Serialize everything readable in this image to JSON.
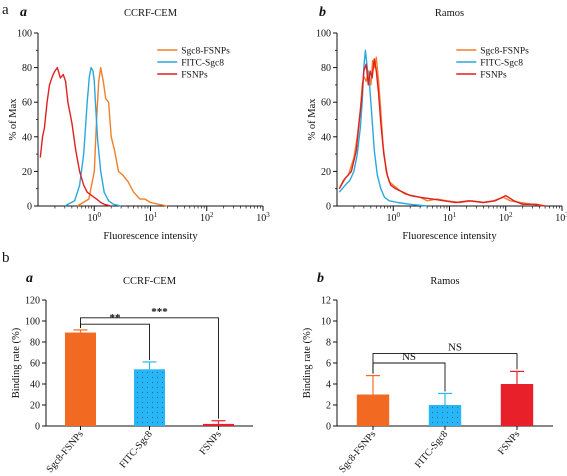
{
  "figure": {
    "row_labels": [
      "a",
      "b"
    ]
  },
  "chart_data": [
    {
      "id": "a-left",
      "type": "line",
      "panel_letter": "a",
      "title": "CCRF-CEM",
      "xlabel": "Fluorescence intensity",
      "ylabel": "% of Max",
      "x_scale": "log",
      "xlim": [
        0.1,
        1000
      ],
      "ylim": [
        0,
        100
      ],
      "x_ticks": [
        {
          "v": 1,
          "base": "10",
          "exp": "0"
        },
        {
          "v": 10,
          "base": "10",
          "exp": "1"
        },
        {
          "v": 100,
          "base": "10",
          "exp": "2"
        },
        {
          "v": 1000,
          "base": "10",
          "exp": "3"
        }
      ],
      "y_ticks": [
        "0",
        "20",
        "40",
        "60",
        "80",
        "100"
      ],
      "legend_position": "top-right",
      "series": [
        {
          "name": "Sgc8-FSNPs",
          "color": "#f07f2a",
          "points": [
            [
              0.5,
              0
            ],
            [
              0.8,
              4
            ],
            [
              1.0,
              20
            ],
            [
              1.1,
              50
            ],
            [
              1.2,
              72
            ],
            [
              1.3,
              80
            ],
            [
              1.45,
              72
            ],
            [
              1.6,
              62
            ],
            [
              1.8,
              60
            ],
            [
              2.0,
              40
            ],
            [
              2.3,
              32
            ],
            [
              2.7,
              20
            ],
            [
              3.2,
              18
            ],
            [
              4.0,
              14
            ],
            [
              5.0,
              8
            ],
            [
              6.5,
              4
            ],
            [
              8,
              4
            ],
            [
              10,
              2
            ],
            [
              14,
              1
            ],
            [
              20,
              0
            ]
          ]
        },
        {
          "name": "FITC-Sgc8",
          "color": "#29a8e0",
          "points": [
            [
              0.3,
              0
            ],
            [
              0.45,
              3
            ],
            [
              0.55,
              12
            ],
            [
              0.65,
              30
            ],
            [
              0.75,
              60
            ],
            [
              0.82,
              75
            ],
            [
              0.88,
              80
            ],
            [
              0.95,
              78
            ],
            [
              1.0,
              72
            ],
            [
              1.05,
              60
            ],
            [
              1.15,
              38
            ],
            [
              1.3,
              20
            ],
            [
              1.5,
              8
            ],
            [
              1.8,
              3
            ],
            [
              2.2,
              1
            ],
            [
              3,
              0
            ]
          ]
        },
        {
          "name": "FSNPs",
          "color": "#e02020",
          "points": [
            [
              0.11,
              28
            ],
            [
              0.12,
              40
            ],
            [
              0.13,
              45
            ],
            [
              0.145,
              60
            ],
            [
              0.16,
              70
            ],
            [
              0.18,
              75
            ],
            [
              0.2,
              78
            ],
            [
              0.22,
              80
            ],
            [
              0.25,
              74
            ],
            [
              0.28,
              76
            ],
            [
              0.31,
              72
            ],
            [
              0.34,
              60
            ],
            [
              0.4,
              48
            ],
            [
              0.47,
              32
            ],
            [
              0.55,
              20
            ],
            [
              0.65,
              12
            ],
            [
              0.75,
              8
            ],
            [
              0.9,
              6
            ],
            [
              1.1,
              4
            ],
            [
              1.3,
              2
            ],
            [
              1.5,
              1
            ],
            [
              2,
              0
            ]
          ]
        }
      ]
    },
    {
      "id": "a-right",
      "type": "line",
      "panel_letter": "b",
      "title": "Ramos",
      "xlabel": "Fluorescence intensity",
      "ylabel": "% of Max",
      "x_scale": "log",
      "xlim": [
        0.1,
        1000
      ],
      "ylim": [
        0,
        100
      ],
      "x_ticks": [
        {
          "v": 1,
          "base": "10",
          "exp": "0"
        },
        {
          "v": 10,
          "base": "10",
          "exp": "1"
        },
        {
          "v": 100,
          "base": "10",
          "exp": "2"
        },
        {
          "v": 1000,
          "base": "10",
          "exp": "3"
        }
      ],
      "y_ticks": [
        "0",
        "20",
        "40",
        "60",
        "80",
        "100"
      ],
      "legend_position": "top-right",
      "series": [
        {
          "name": "Sgc8-FSNPs",
          "color": "#f07f2a",
          "points": [
            [
              0.11,
              10
            ],
            [
              0.13,
              15
            ],
            [
              0.16,
              18
            ],
            [
              0.2,
              28
            ],
            [
              0.23,
              40
            ],
            [
              0.26,
              55
            ],
            [
              0.28,
              70
            ],
            [
              0.3,
              75
            ],
            [
              0.33,
              72
            ],
            [
              0.36,
              78
            ],
            [
              0.4,
              70
            ],
            [
              0.43,
              84
            ],
            [
              0.47,
              80
            ],
            [
              0.5,
              86
            ],
            [
              0.55,
              72
            ],
            [
              0.6,
              55
            ],
            [
              0.66,
              35
            ],
            [
              0.75,
              20
            ],
            [
              0.85,
              14
            ],
            [
              1.0,
              12
            ],
            [
              1.3,
              9
            ],
            [
              1.6,
              7
            ],
            [
              2.2,
              6
            ],
            [
              3,
              5
            ],
            [
              4,
              3
            ],
            [
              6,
              4
            ],
            [
              9,
              3
            ],
            [
              15,
              2
            ],
            [
              25,
              3
            ],
            [
              40,
              2
            ],
            [
              60,
              3
            ],
            [
              90,
              5
            ],
            [
              120,
              3
            ],
            [
              180,
              2
            ],
            [
              300,
              1
            ],
            [
              500,
              0
            ]
          ]
        },
        {
          "name": "FITC-Sgc8",
          "color": "#29a8e0",
          "points": [
            [
              0.11,
              8
            ],
            [
              0.14,
              12
            ],
            [
              0.17,
              15
            ],
            [
              0.2,
              20
            ],
            [
              0.23,
              30
            ],
            [
              0.26,
              45
            ],
            [
              0.28,
              60
            ],
            [
              0.3,
              80
            ],
            [
              0.32,
              90
            ],
            [
              0.35,
              78
            ],
            [
              0.38,
              70
            ],
            [
              0.42,
              50
            ],
            [
              0.46,
              32
            ],
            [
              0.52,
              18
            ],
            [
              0.6,
              10
            ],
            [
              0.7,
              5
            ],
            [
              0.85,
              3
            ],
            [
              1.2,
              2
            ],
            [
              2,
              1
            ],
            [
              4,
              0
            ]
          ]
        },
        {
          "name": "FSNPs",
          "color": "#e02020",
          "points": [
            [
              0.11,
              10
            ],
            [
              0.14,
              16
            ],
            [
              0.18,
              20
            ],
            [
              0.22,
              32
            ],
            [
              0.25,
              50
            ],
            [
              0.28,
              65
            ],
            [
              0.3,
              78
            ],
            [
              0.33,
              82
            ],
            [
              0.36,
              70
            ],
            [
              0.39,
              78
            ],
            [
              0.42,
              74
            ],
            [
              0.46,
              85
            ],
            [
              0.5,
              78
            ],
            [
              0.55,
              65
            ],
            [
              0.6,
              48
            ],
            [
              0.68,
              30
            ],
            [
              0.78,
              18
            ],
            [
              0.9,
              12
            ],
            [
              1.1,
              10
            ],
            [
              1.5,
              8
            ],
            [
              2,
              6
            ],
            [
              3,
              5
            ],
            [
              5,
              4
            ],
            [
              8,
              3
            ],
            [
              13,
              2
            ],
            [
              22,
              3
            ],
            [
              40,
              2
            ],
            [
              65,
              3
            ],
            [
              100,
              6
            ],
            [
              140,
              3
            ],
            [
              200,
              1
            ],
            [
              350,
              1
            ],
            [
              500,
              0
            ]
          ]
        }
      ]
    },
    {
      "id": "b-left",
      "type": "bar",
      "panel_letter": "a",
      "title": "CCRF-CEM",
      "xlabel": "",
      "ylabel": "Binding rate (%)",
      "ylim": [
        0,
        120
      ],
      "y_ticks": [
        "0",
        "20",
        "40",
        "60",
        "80",
        "100",
        "120"
      ],
      "categories": [
        "Sgc8-FSNPs",
        "FITC-Sgc8",
        "FSNPs"
      ],
      "values": [
        89,
        54,
        2
      ],
      "errors": [
        2.5,
        7,
        3
      ],
      "colors": [
        "#f26a21",
        "#29b6f6",
        "#e8202a"
      ],
      "significance": [
        {
          "from": 0,
          "to": 1,
          "label": "**",
          "y": 97
        },
        {
          "from": 0,
          "to": 2,
          "label": "***",
          "y": 103
        }
      ]
    },
    {
      "id": "b-right",
      "type": "bar",
      "panel_letter": "b",
      "title": "Ramos",
      "xlabel": "",
      "ylabel": "Binding rate (%)",
      "ylim": [
        0,
        12
      ],
      "y_ticks": [
        "0",
        "2",
        "4",
        "6",
        "8",
        "10",
        "12"
      ],
      "categories": [
        "Sgc8-FSNPs",
        "FITC-Sgc8",
        "FSNPs"
      ],
      "values": [
        3,
        2,
        4
      ],
      "errors": [
        1.8,
        1.1,
        1.2
      ],
      "colors": [
        "#f26a21",
        "#29b6f6",
        "#e8202a"
      ],
      "significance": [
        {
          "from": 0,
          "to": 1,
          "label": "NS",
          "y": 6.0
        },
        {
          "from": 0,
          "to": 2,
          "label": "NS",
          "y": 6.9
        }
      ]
    }
  ]
}
